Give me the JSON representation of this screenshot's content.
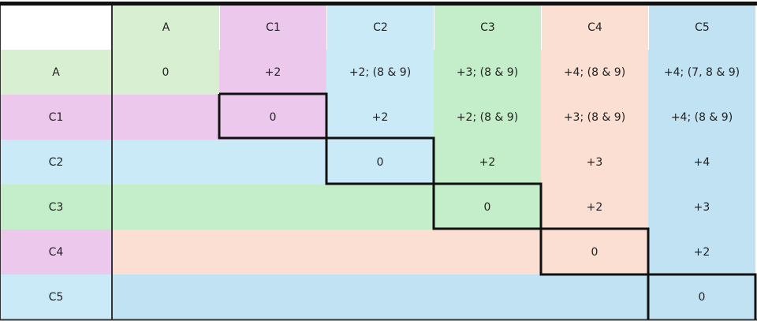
{
  "header": [
    "A",
    "C1",
    "C2",
    "C3",
    "C4",
    "C5"
  ],
  "rows": [
    {
      "label": "A",
      "values": [
        "0",
        "+2",
        "+2; (8 & 9)",
        "+3; (8 & 9)",
        "+4; (8 & 9)",
        "+4; (7, 8 & 9)"
      ]
    },
    {
      "label": "C1",
      "values": [
        "0",
        "+2",
        "+2; (8 & 9)",
        "+3; (8 & 9)",
        "+4; (8 & 9)"
      ]
    },
    {
      "label": "C2",
      "values": [
        "0",
        "+2",
        "+3",
        "+4"
      ]
    },
    {
      "label": "C3",
      "values": [
        "0",
        "+2",
        "+3"
      ]
    },
    {
      "label": "C4",
      "values": [
        "0",
        "+2"
      ]
    },
    {
      "label": "C5",
      "values": [
        "0"
      ]
    }
  ]
}
